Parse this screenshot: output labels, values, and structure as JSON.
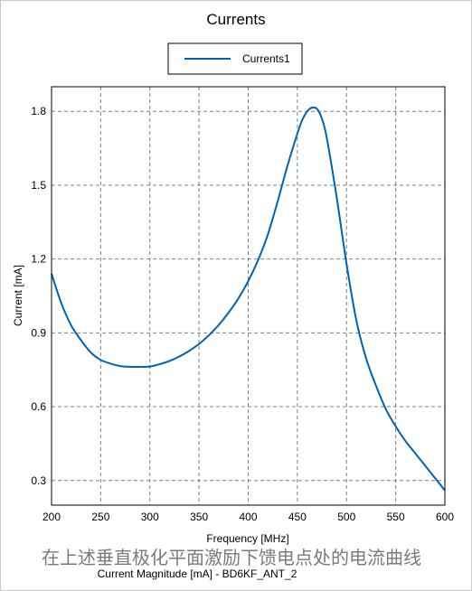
{
  "chart_data": {
    "type": "line",
    "title": "Currents",
    "xlabel": "Frequency [MHz]",
    "ylabel": "Current [mA]",
    "xlim": [
      200,
      600
    ],
    "ylim": [
      0.2,
      1.9
    ],
    "xticks": [
      200,
      250,
      300,
      350,
      400,
      450,
      500,
      550,
      600
    ],
    "yticks": [
      0.3,
      0.6,
      0.9,
      1.2,
      1.5,
      1.8
    ],
    "ytick_labels": [
      "0.3",
      "0.6",
      "0.9",
      "1.2",
      "1.5",
      "1.8"
    ],
    "grid": true,
    "legend_position": "top-center",
    "series": [
      {
        "name": "Currents1",
        "color": "#0063b1",
        "x": [
          200,
          210,
          220,
          230,
          240,
          250,
          260,
          270,
          280,
          290,
          300,
          310,
          320,
          330,
          340,
          350,
          360,
          370,
          380,
          390,
          400,
          410,
          420,
          430,
          440,
          450,
          455,
          460,
          465,
          470,
          475,
          480,
          490,
          500,
          510,
          520,
          530,
          540,
          550,
          560,
          570,
          580,
          590,
          600
        ],
        "y": [
          1.14,
          1.02,
          0.93,
          0.87,
          0.82,
          0.79,
          0.775,
          0.765,
          0.762,
          0.762,
          0.763,
          0.773,
          0.786,
          0.804,
          0.827,
          0.855,
          0.89,
          0.932,
          0.982,
          1.04,
          1.11,
          1.195,
          1.3,
          1.435,
          1.58,
          1.71,
          1.765,
          1.8,
          1.815,
          1.81,
          1.77,
          1.69,
          1.45,
          1.18,
          0.95,
          0.795,
          0.685,
          0.59,
          0.52,
          0.46,
          0.41,
          0.36,
          0.31,
          0.26
        ]
      }
    ]
  },
  "caption": "在上述垂直极化平面激励下馈电点处的电流曲线",
  "subtitle": "Current Magnitude [mA] - BD6KF_ANT_2"
}
